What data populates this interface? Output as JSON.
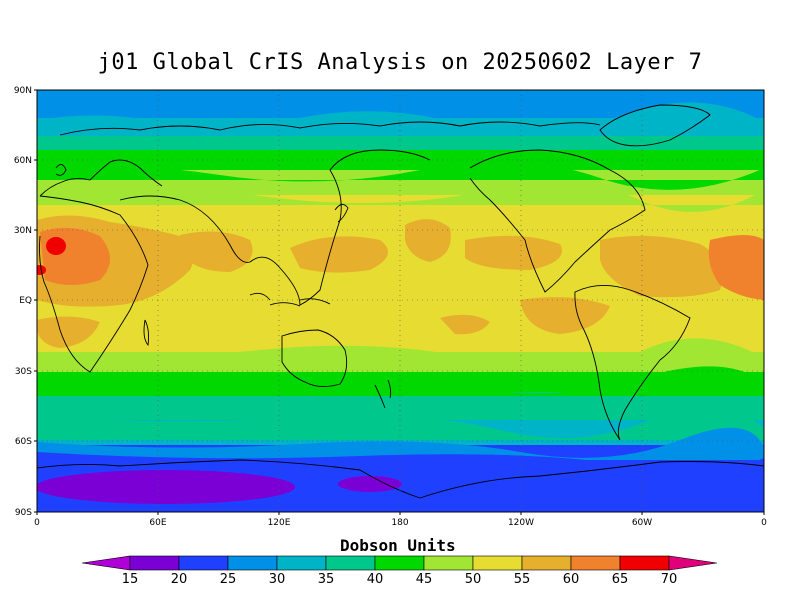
{
  "title": "j01 Global CrIS Analysis on 20250602 Layer 7",
  "lat_labels": [
    "90N",
    "60N",
    "30N",
    "EQ",
    "30S",
    "60S",
    "90S"
  ],
  "lon_labels": [
    "0",
    "60E",
    "120E",
    "180",
    "120W",
    "60W",
    "0"
  ],
  "colorbar": {
    "title": "Dobson Units",
    "levels": [
      "15",
      "20",
      "25",
      "30",
      "35",
      "40",
      "45",
      "50",
      "55",
      "60",
      "65",
      "70"
    ],
    "colors": [
      "#b000d8",
      "#7a00d6",
      "#2040ff",
      "#0090e8",
      "#00b4c8",
      "#00c88c",
      "#00d800",
      "#a0e632",
      "#e6dc32",
      "#e6af2d",
      "#f0822d",
      "#f00000",
      "#e0007a"
    ]
  },
  "chart_data": {
    "type": "heatmap",
    "title": "j01 Global CrIS Analysis on 20250602 Layer 7",
    "projection": "cylindrical-equidistant",
    "units": "Dobson Units",
    "lat_range": [
      "90S",
      "90N"
    ],
    "lon_range": [
      "0",
      "0"
    ],
    "zonal_bands": [
      {
        "lat_band": "90N-75N",
        "value": "25-30"
      },
      {
        "lat_band": "75N-60N",
        "value": "35-40"
      },
      {
        "lat_band": "60N-50N",
        "value": "40-45"
      },
      {
        "lat_band": "50N-40N",
        "value": "45-50"
      },
      {
        "lat_band": "40N-15S",
        "value": "50-55"
      },
      {
        "lat_band": "25N-15N Africa/Arabia",
        "value": "60-70"
      },
      {
        "lat_band": "15S-25S",
        "value": "45-50"
      },
      {
        "lat_band": "25S-35S",
        "value": "40-45"
      },
      {
        "lat_band": "35S-50S",
        "value": "35-40"
      },
      {
        "lat_band": "50S-65S",
        "value": "30-35"
      },
      {
        "lat_band": "65S-90S",
        "value": "20-25"
      },
      {
        "lat_band": "Antarctic interior",
        "value": "15-20"
      }
    ],
    "grid": true
  }
}
